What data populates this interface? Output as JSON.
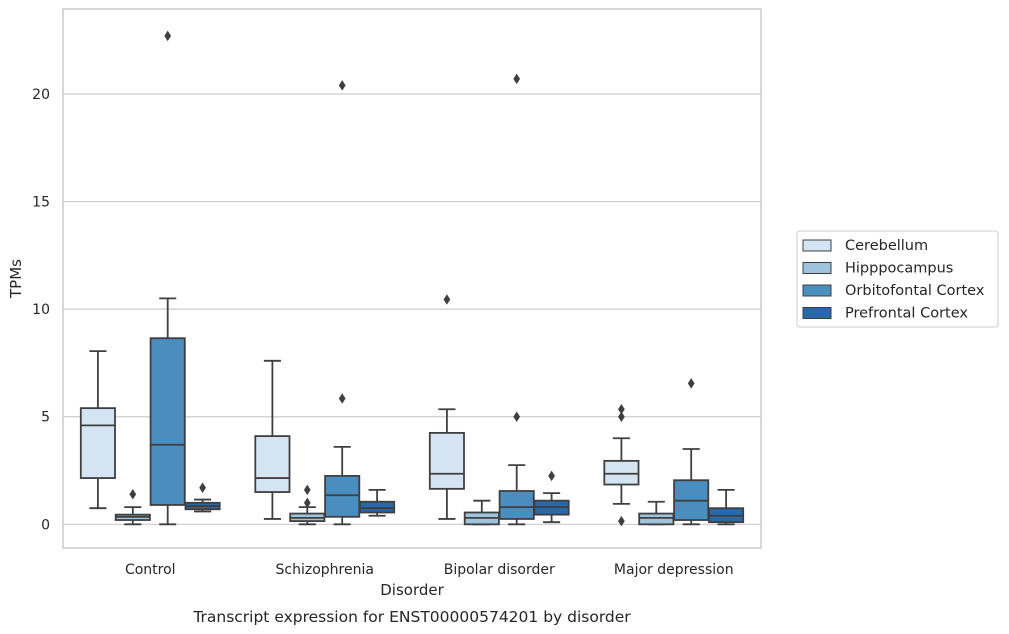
{
  "chart_data": {
    "type": "box",
    "xlabel": "Disorder",
    "ylabel": "TPMs",
    "caption": "Transcript expression for ENST00000574201 by disorder",
    "ylim": [
      -1.1,
      23.95
    ],
    "yticks": [
      0,
      5,
      10,
      15,
      20
    ],
    "grid": "horizontal",
    "legend_position": "right",
    "categories": [
      "Control",
      "Schizophrenia",
      "Bipolar disorder",
      "Major depression"
    ],
    "series": [
      {
        "name": "Cerebellum",
        "color": "#d5e4f2",
        "boxes": [
          {
            "whislo": 0.75,
            "q1": 2.15,
            "med": 4.6,
            "q3": 5.4,
            "whishi": 8.05,
            "fliers": []
          },
          {
            "whislo": 0.25,
            "q1": 1.5,
            "med": 2.15,
            "q3": 4.1,
            "whishi": 7.6,
            "fliers": []
          },
          {
            "whislo": 0.25,
            "q1": 1.65,
            "med": 2.35,
            "q3": 4.25,
            "whishi": 5.35,
            "fliers": [
              10.45
            ]
          },
          {
            "whislo": 0.95,
            "q1": 1.85,
            "med": 2.35,
            "q3": 2.95,
            "whishi": 4.0,
            "fliers": [
              5.0,
              5.35,
              0.15
            ]
          }
        ]
      },
      {
        "name": "Hipppocampus",
        "color": "#9dc3dd",
        "boxes": [
          {
            "whislo": 0.0,
            "q1": 0.2,
            "med": 0.35,
            "q3": 0.45,
            "whishi": 0.8,
            "fliers": [
              1.4
            ]
          },
          {
            "whislo": 0.0,
            "q1": 0.15,
            "med": 0.3,
            "q3": 0.5,
            "whishi": 0.8,
            "fliers": [
              1.0,
              1.6
            ]
          },
          {
            "whislo": 0.0,
            "q1": 0.0,
            "med": 0.3,
            "q3": 0.55,
            "whishi": 1.1,
            "fliers": []
          },
          {
            "whislo": 0.0,
            "q1": 0.0,
            "med": 0.3,
            "q3": 0.5,
            "whishi": 1.05,
            "fliers": []
          }
        ]
      },
      {
        "name": "Orbitofontal Cortex",
        "color": "#4a8dbf",
        "boxes": [
          {
            "whislo": 0.0,
            "q1": 0.9,
            "med": 3.7,
            "q3": 8.65,
            "whishi": 10.5,
            "fliers": [
              22.7
            ]
          },
          {
            "whislo": 0.0,
            "q1": 0.35,
            "med": 1.35,
            "q3": 2.25,
            "whishi": 3.6,
            "fliers": [
              5.85,
              20.4
            ]
          },
          {
            "whislo": 0.0,
            "q1": 0.25,
            "med": 0.8,
            "q3": 1.55,
            "whishi": 2.75,
            "fliers": [
              5.0,
              20.7
            ]
          },
          {
            "whislo": 0.0,
            "q1": 0.2,
            "med": 1.1,
            "q3": 2.05,
            "whishi": 3.5,
            "fliers": [
              6.55
            ]
          }
        ]
      },
      {
        "name": "Prefrontal Cortex",
        "color": "#2a69a9",
        "boxes": [
          {
            "whislo": 0.6,
            "q1": 0.7,
            "med": 0.85,
            "q3": 1.0,
            "whishi": 1.15,
            "fliers": [
              1.7
            ]
          },
          {
            "whislo": 0.4,
            "q1": 0.55,
            "med": 0.75,
            "q3": 1.05,
            "whishi": 1.6,
            "fliers": []
          },
          {
            "whislo": 0.1,
            "q1": 0.45,
            "med": 0.8,
            "q3": 1.1,
            "whishi": 1.45,
            "fliers": [
              2.25
            ]
          },
          {
            "whislo": 0.0,
            "q1": 0.1,
            "med": 0.4,
            "q3": 0.75,
            "whishi": 1.6,
            "fliers": []
          }
        ]
      }
    ]
  }
}
